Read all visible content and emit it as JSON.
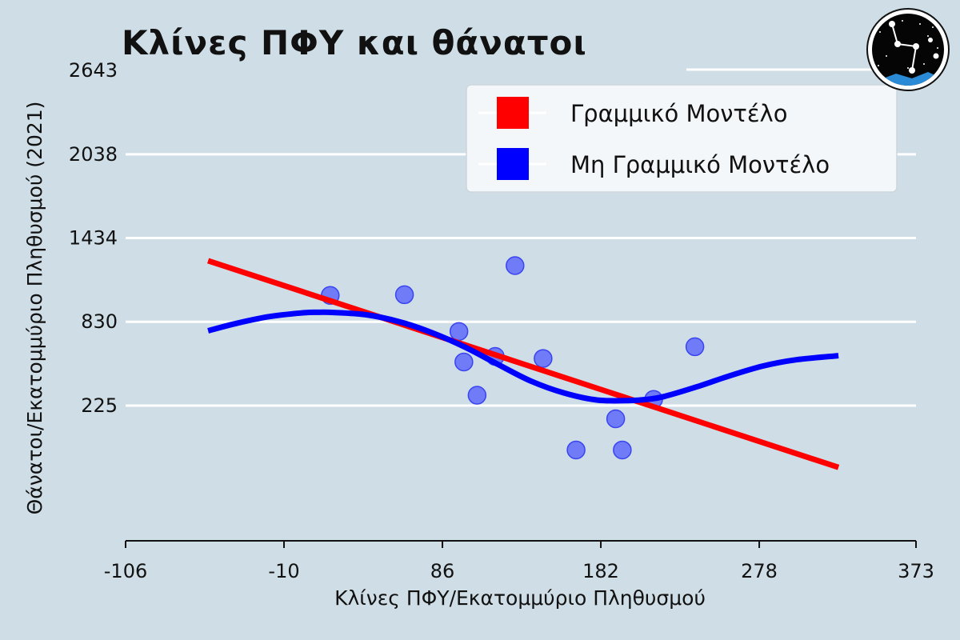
{
  "chart_data": {
    "type": "scatter",
    "title": "Κλίνες ΠΦΥ και θάνατοι",
    "xlabel": "Κλίνες ΠΦΥ/Εκατομμύριο Πληθυσμού",
    "ylabel": "Θάνατοι/Εκατομμύριο Πληθυσμού (2021)",
    "xlim": [
      -106,
      373
    ],
    "ylim": [
      -750,
      2643
    ],
    "x_ticks": [
      "-106",
      "-10",
      "86",
      "182",
      "278",
      "373"
    ],
    "y_ticks": [
      "225",
      "830",
      "1434",
      "2038",
      "2643"
    ],
    "grid": "horizontal",
    "legend_position": "top-right",
    "points": [
      {
        "x": 18,
        "y": 1020
      },
      {
        "x": 63,
        "y": 1025
      },
      {
        "x": 96,
        "y": 760
      },
      {
        "x": 99,
        "y": 540
      },
      {
        "x": 107,
        "y": 300
      },
      {
        "x": 118,
        "y": 580
      },
      {
        "x": 130,
        "y": 1235
      },
      {
        "x": 147,
        "y": 565
      },
      {
        "x": 167,
        "y": -95
      },
      {
        "x": 191,
        "y": 130
      },
      {
        "x": 195,
        "y": -95
      },
      {
        "x": 214,
        "y": 270
      },
      {
        "x": 239,
        "y": 650
      }
    ],
    "series": [
      {
        "name": "Γραμμικό Μοντέλο",
        "color": "#ff0000",
        "x": [
          -56,
          326
        ],
        "y": [
          1270,
          -220
        ]
      },
      {
        "name": "Μη Γραμμικό Μοντέλο",
        "color": "#0000ff",
        "x": [
          -56,
          -40,
          -20,
          0,
          10,
          20,
          40,
          60,
          80,
          100,
          120,
          140,
          160,
          180,
          200,
          210,
          220,
          240,
          260,
          280,
          300,
          326
        ],
        "y": [
          765,
          815,
          865,
          893,
          898,
          897,
          880,
          830,
          750,
          645,
          520,
          400,
          315,
          265,
          262,
          270,
          290,
          360,
          440,
          510,
          555,
          585
        ]
      }
    ],
    "point_color": "#4b55ff"
  }
}
